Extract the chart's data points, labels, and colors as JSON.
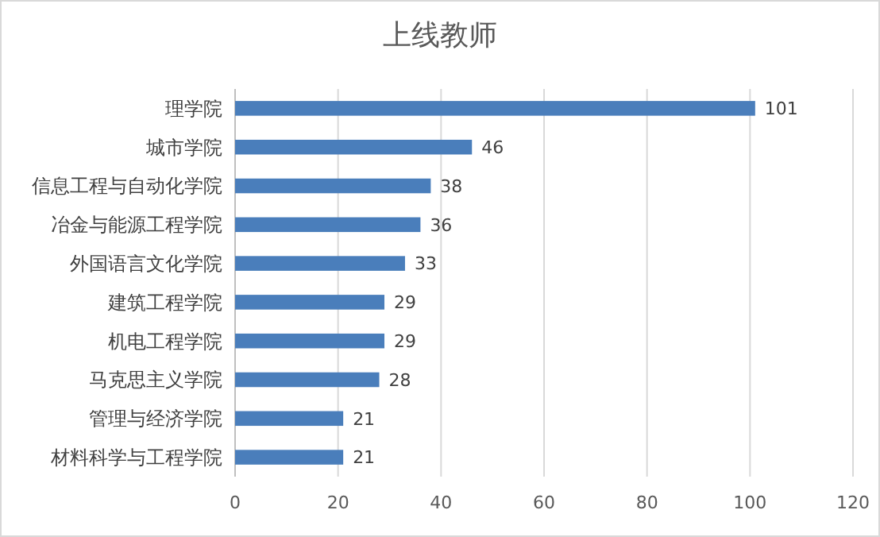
{
  "chart_data": {
    "type": "bar",
    "orientation": "horizontal",
    "title": "上线教师",
    "categories": [
      "理学院",
      "城市学院",
      "信息工程与自动化学院",
      "冶金与能源工程学院",
      "外国语言文化学院",
      "建筑工程学院",
      "机电工程学院",
      "马克思主义学院",
      "管理与经济学院",
      "材料科学与工程学院"
    ],
    "values": [
      101,
      46,
      38,
      36,
      33,
      29,
      29,
      28,
      21,
      21
    ],
    "color": "#4a7ebb",
    "xlim": [
      0,
      120
    ],
    "xticks": [
      0,
      20,
      40,
      60,
      80,
      100,
      120
    ],
    "grid": "x",
    "data_labels": true
  }
}
